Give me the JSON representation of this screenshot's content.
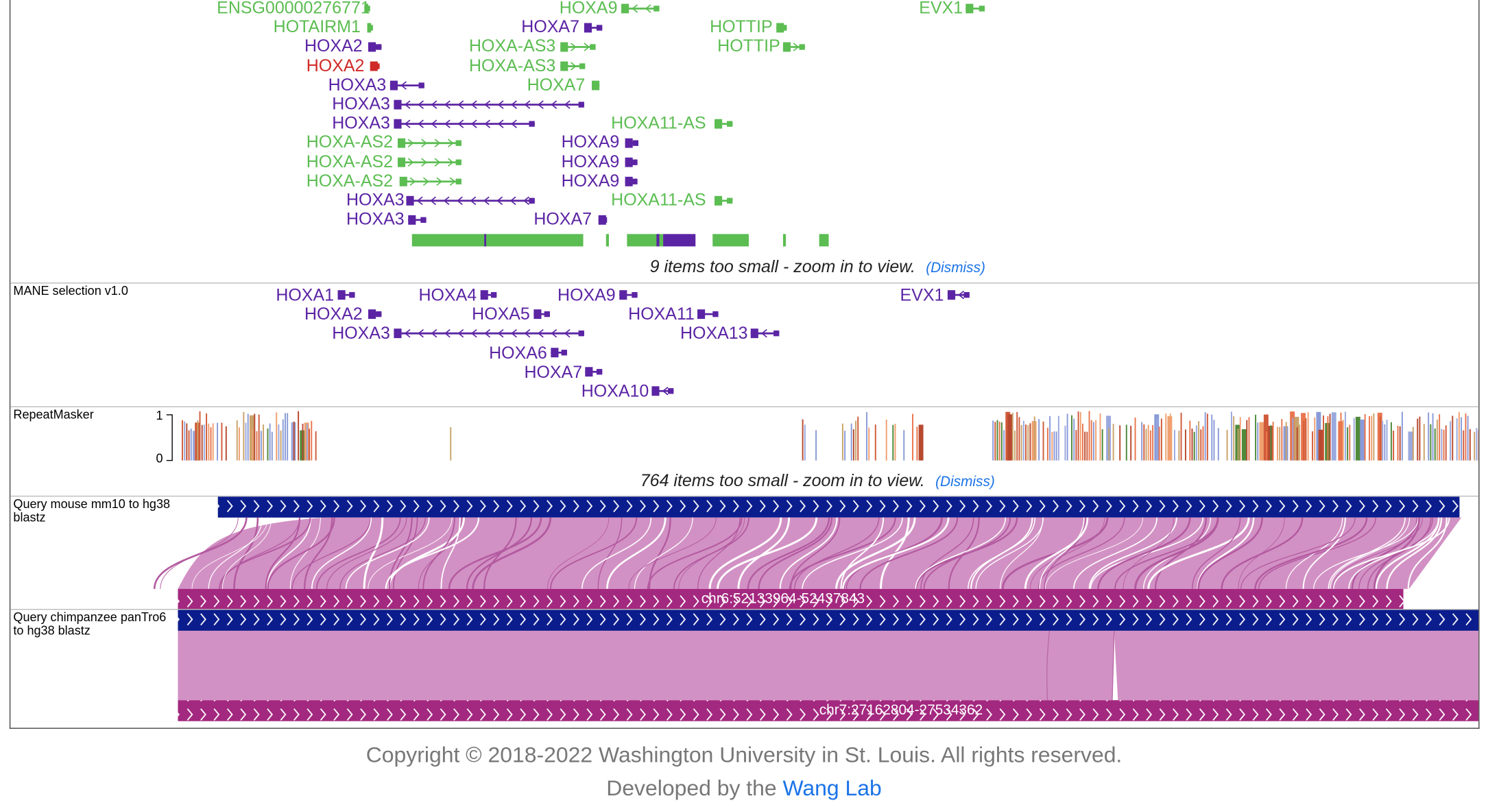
{
  "gene_track": {
    "genes": [
      {
        "name": "ENSG00000276771",
        "color": "green",
        "dir": "right"
      },
      {
        "name": "HOXA9",
        "color": "green",
        "dir": "left"
      },
      {
        "name": "EVX1",
        "color": "green",
        "dir": "right"
      },
      {
        "name": "HOTAIRM1",
        "color": "green",
        "dir": "right"
      },
      {
        "name": "HOXA7",
        "color": "purple",
        "dir": "left"
      },
      {
        "name": "HOTTIP",
        "color": "green",
        "dir": "right"
      },
      {
        "name": "HOXA2",
        "color": "purple",
        "dir": "left"
      },
      {
        "name": "HOXA-AS3",
        "color": "green",
        "dir": "right"
      },
      {
        "name": "HOTTIP",
        "color": "green",
        "dir": "right"
      },
      {
        "name": "HOXA2",
        "color": "red",
        "dir": "left"
      },
      {
        "name": "HOXA-AS3",
        "color": "green",
        "dir": "right"
      },
      {
        "name": "HOXA3",
        "color": "purple",
        "dir": "left"
      },
      {
        "name": "HOXA7",
        "color": "green",
        "dir": "left"
      },
      {
        "name": "HOXA3",
        "color": "purple",
        "dir": "left"
      },
      {
        "name": "HOXA3",
        "color": "purple",
        "dir": "left"
      },
      {
        "name": "HOXA11-AS",
        "color": "green",
        "dir": "right"
      },
      {
        "name": "HOXA-AS2",
        "color": "green",
        "dir": "right"
      },
      {
        "name": "HOXA9",
        "color": "purple",
        "dir": "left"
      },
      {
        "name": "HOXA-AS2",
        "color": "green",
        "dir": "right"
      },
      {
        "name": "HOXA9",
        "color": "purple",
        "dir": "left"
      },
      {
        "name": "HOXA-AS2",
        "color": "green",
        "dir": "right"
      },
      {
        "name": "HOXA9",
        "color": "purple",
        "dir": "left"
      },
      {
        "name": "HOXA3",
        "color": "purple",
        "dir": "left"
      },
      {
        "name": "HOXA11-AS",
        "color": "green",
        "dir": "right"
      },
      {
        "name": "HOXA3",
        "color": "purple",
        "dir": "left"
      },
      {
        "name": "HOXA7",
        "color": "purple",
        "dir": "left"
      }
    ],
    "too_small_message": "9 items too small - zoom in to view.",
    "dismiss_label": "(Dismiss)"
  },
  "mane_track": {
    "label": "MANE selection v1.0",
    "genes": [
      {
        "name": "HOXA1"
      },
      {
        "name": "HOXA4"
      },
      {
        "name": "HOXA9"
      },
      {
        "name": "EVX1"
      },
      {
        "name": "HOXA2"
      },
      {
        "name": "HOXA5"
      },
      {
        "name": "HOXA11"
      },
      {
        "name": "HOXA3"
      },
      {
        "name": "HOXA13"
      },
      {
        "name": "HOXA6"
      },
      {
        "name": "HOXA7"
      },
      {
        "name": "HOXA10"
      }
    ]
  },
  "repeat_track": {
    "label": "RepeatMasker",
    "axis_max": "1",
    "axis_min": "0",
    "too_small_message": "764 items too small - zoom in to view.",
    "dismiss_label": "(Dismiss)"
  },
  "mouse_track": {
    "label": "Query mouse mm10 to hg38 blastz",
    "query_region": "chr6:52133964-52437843"
  },
  "chimp_track": {
    "label": "Query chimpanzee panTro6 to hg38 blastz",
    "query_region": "chr7:27162804-27534362"
  },
  "colors": {
    "gene_green": "#5cbd52",
    "gene_purple": "#5b24a4",
    "gene_red": "#cf2a27",
    "target_bar": "#0b1c8c",
    "query_bar": "#a3287f",
    "alignment_fill": "#d291c4"
  },
  "footer": {
    "copyright": "Copyright © 2018-2022 Washington University in St. Louis. All rights reserved.",
    "developed_prefix": "Developed by the",
    "lab_link": "Wang Lab"
  }
}
